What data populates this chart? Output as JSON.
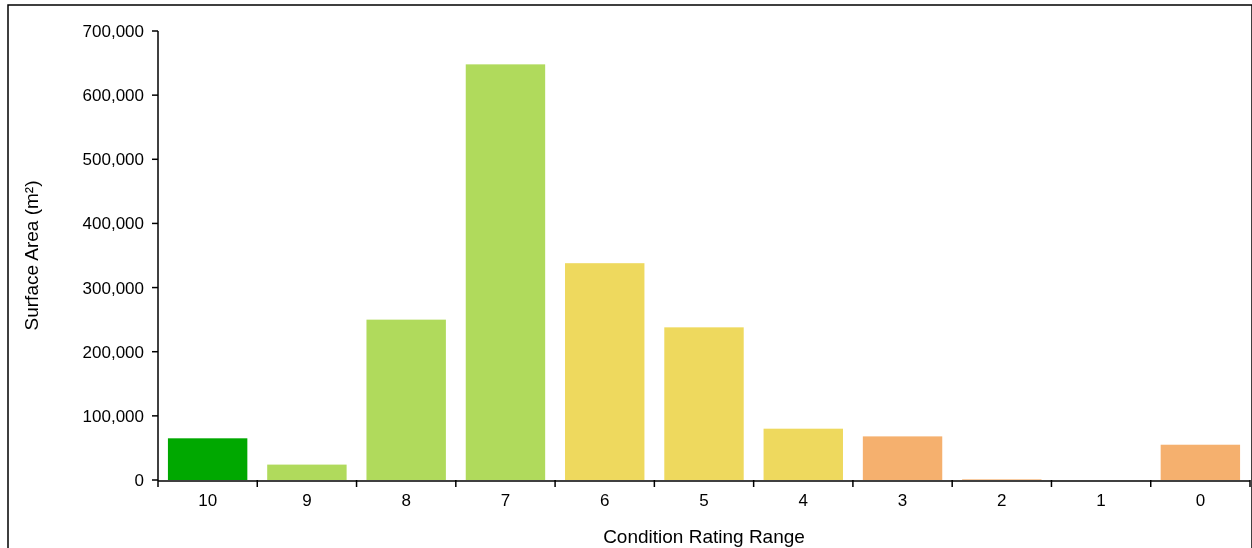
{
  "chart_data": {
    "type": "bar",
    "xlabel": "Condition Rating Range",
    "ylabel": "Surface Area (m²)",
    "categories": [
      "10",
      "9",
      "8",
      "7",
      "6",
      "5",
      "4",
      "3",
      "2",
      "1",
      "0"
    ],
    "values": [
      65000,
      24000,
      250000,
      648000,
      338000,
      238000,
      80000,
      68000,
      1000,
      0,
      55000
    ],
    "colors": [
      "#00a800",
      "#b0da5c",
      "#b0da5c",
      "#b0da5c",
      "#eed95e",
      "#eed95e",
      "#eed95e",
      "#f5b06e",
      "#f5b06e",
      "#f5b06e",
      "#f5b06e"
    ],
    "ylim": [
      0,
      700000
    ],
    "yticks": [
      {
        "value": 0,
        "label": "0"
      },
      {
        "value": 100000,
        "label": "100,000"
      },
      {
        "value": 200000,
        "label": "200,000"
      },
      {
        "value": 300000,
        "label": "300,000"
      },
      {
        "value": 400000,
        "label": "400,000"
      },
      {
        "value": 500000,
        "label": "500,000"
      },
      {
        "value": 600000,
        "label": "600,000"
      },
      {
        "value": 700000,
        "label": "700,000"
      }
    ],
    "grid": false
  }
}
